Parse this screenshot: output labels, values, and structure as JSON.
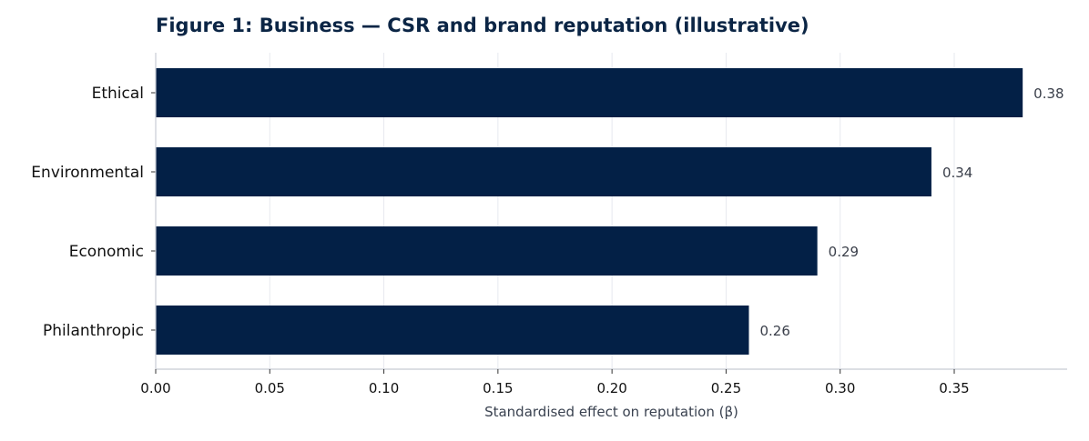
{
  "chart_data": {
    "type": "bar",
    "orientation": "horizontal",
    "title": "Figure 1: Business — CSR and brand reputation (illustrative)",
    "xlabel": "Standardised effect on reputation (β)",
    "ylabel": "",
    "categories": [
      "Ethical",
      "Environmental",
      "Economic",
      "Philanthropic"
    ],
    "values": [
      0.38,
      0.34,
      0.29,
      0.26
    ],
    "value_labels": [
      "0.38",
      "0.34",
      "0.29",
      "0.26"
    ],
    "xlim": [
      0,
      0.4
    ],
    "xticks": [
      0.0,
      0.05,
      0.1,
      0.15,
      0.2,
      0.25,
      0.3,
      0.35
    ],
    "xtick_labels": [
      "0.00",
      "0.05",
      "0.10",
      "0.15",
      "0.20",
      "0.25",
      "0.30",
      "0.35"
    ],
    "grid": "vertical",
    "legend": "none",
    "colors": {
      "bar": "#032046",
      "title": "#0b2545",
      "grid": "#e6e9ef",
      "axis": "#c8ccd4",
      "label": "#111111",
      "value_label": "#3a3f4a",
      "xlabel": "#3a4250"
    }
  }
}
